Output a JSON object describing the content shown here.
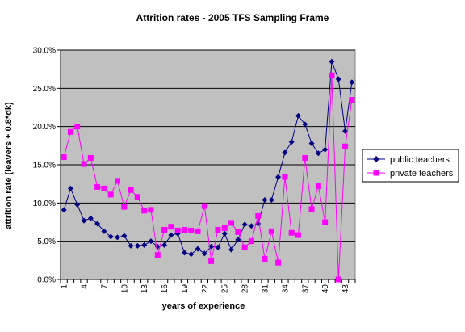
{
  "chart_data": {
    "type": "line",
    "title": "Attrition rates - 2005 TFS Sampling Frame",
    "xlabel": "years of experience",
    "ylabel": "attrition rate (leavers + 0.8*dk)",
    "x": [
      1,
      2,
      3,
      4,
      5,
      6,
      7,
      8,
      9,
      10,
      11,
      12,
      13,
      14,
      15,
      16,
      17,
      18,
      19,
      20,
      21,
      22,
      23,
      24,
      25,
      26,
      27,
      28,
      29,
      30,
      31,
      32,
      33,
      34,
      35,
      36,
      37,
      38,
      39,
      40,
      41,
      42,
      43,
      44
    ],
    "x_tick_labels": [
      "1",
      "4",
      "7",
      "10",
      "13",
      "16",
      "19",
      "22",
      "25",
      "28",
      "31",
      "34",
      "37",
      "40",
      "43"
    ],
    "y_tick_labels": [
      "0.0%",
      "5.0%",
      "10.0%",
      "15.0%",
      "20.0%",
      "25.0%",
      "30.0%"
    ],
    "ylim": [
      0,
      0.3
    ],
    "grid": "horizontal",
    "legend_position": "right",
    "colors": {
      "plot_bg": "#c0c0c0",
      "public": "#000080",
      "private": "#ff00ff"
    },
    "series": [
      {
        "name": "public teachers",
        "marker": "diamond",
        "values": [
          0.091,
          0.119,
          0.098,
          0.077,
          0.08,
          0.073,
          0.063,
          0.056,
          0.055,
          0.057,
          0.044,
          0.044,
          0.045,
          0.05,
          0.043,
          0.045,
          0.058,
          0.06,
          0.035,
          0.033,
          0.04,
          0.034,
          0.043,
          0.042,
          0.06,
          0.039,
          0.052,
          0.072,
          0.07,
          0.073,
          0.104,
          0.104,
          0.134,
          0.166,
          0.18,
          0.214,
          0.203,
          0.178,
          0.165,
          0.17,
          0.285,
          0.262,
          0.194,
          0.258
        ]
      },
      {
        "name": "private teachers",
        "marker": "square",
        "values": [
          0.16,
          0.193,
          0.2,
          0.151,
          0.159,
          0.121,
          0.119,
          0.111,
          0.129,
          0.095,
          0.117,
          0.108,
          0.09,
          0.091,
          0.032,
          0.065,
          0.069,
          0.064,
          0.065,
          0.064,
          0.063,
          0.096,
          0.024,
          0.065,
          0.067,
          0.074,
          0.062,
          0.042,
          0.05,
          0.083,
          0.027,
          0.063,
          0.022,
          0.134,
          0.061,
          0.058,
          0.159,
          0.092,
          0.122,
          0.075,
          0.267,
          0.0,
          0.174,
          0.235
        ]
      }
    ]
  }
}
